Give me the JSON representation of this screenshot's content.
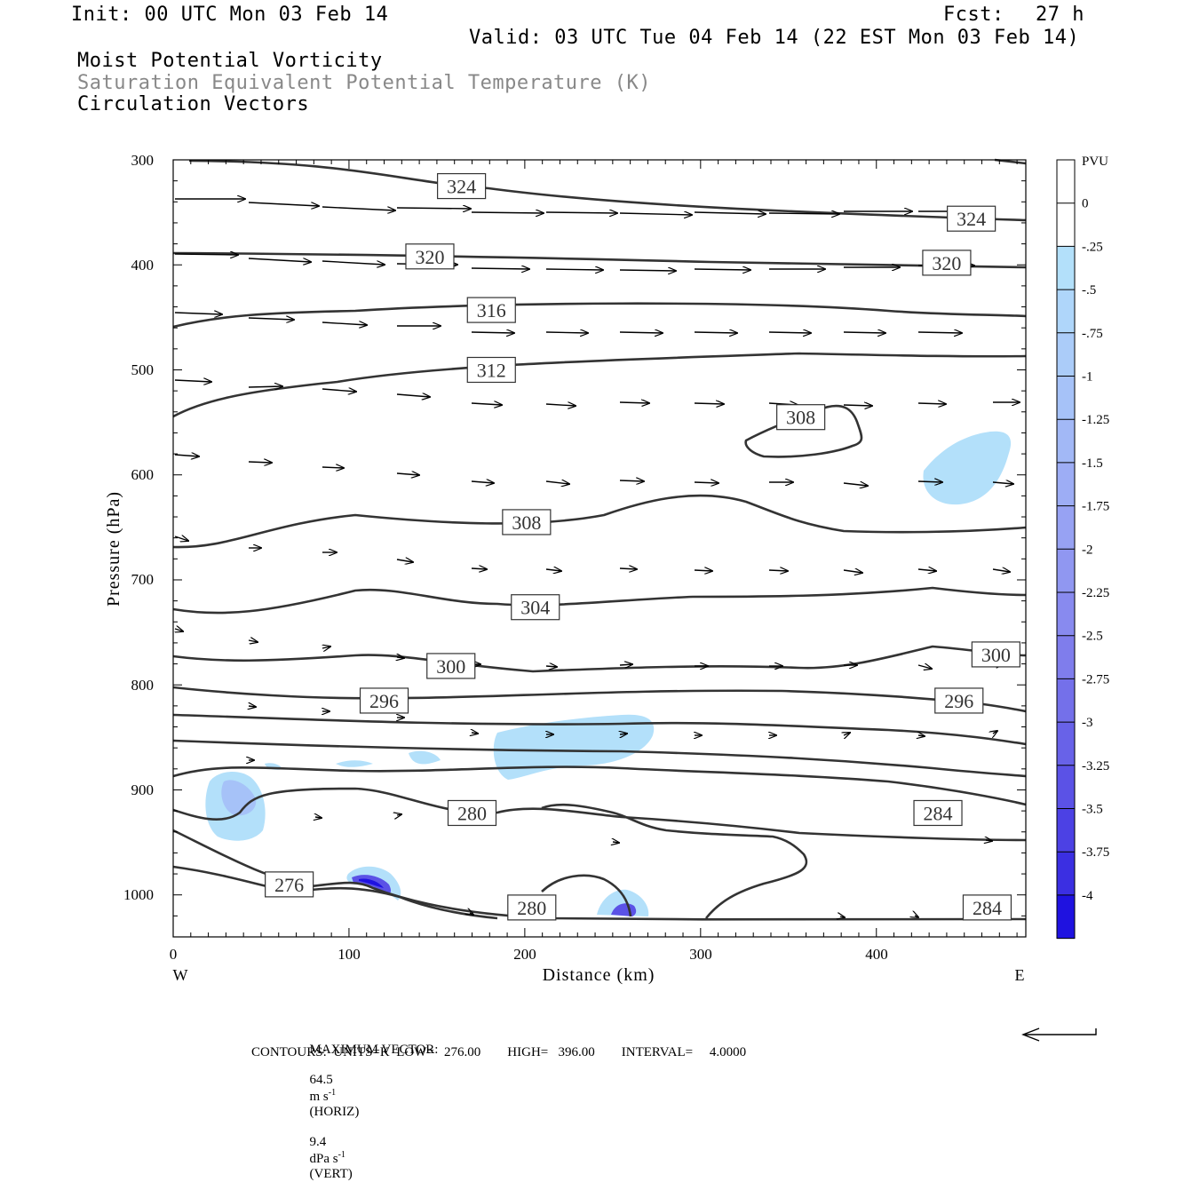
{
  "header": {
    "init": "Init: 00 UTC Mon 03 Feb 14",
    "fcst_label": "Fcst:",
    "fcst_value": "27 h",
    "valid": "Valid: 03 UTC Tue 04 Feb 14 (22 EST Mon 03 Feb 14)",
    "field1": "Moist Potential Vorticity",
    "field2": "Saturation Equivalent Potential Temperature (K)",
    "field3": "Circulation Vectors"
  },
  "footer": {
    "max_vector_label": "MAXIMUM VECTOR:",
    "horiz_value": "64.5",
    "horiz_unit_base": "m s",
    "horiz_unit_exp": "-1",
    "horiz_tag": "(HORIZ)",
    "vert_value": "9.4",
    "vert_unit_base": "dPa s",
    "vert_unit_exp": "-1",
    "vert_tag": "(VERT)",
    "contours_line": "CONTOURS:  UNITS=K  LOW=   276.00        HIGH=   396.00        INTERVAL=     4.0000"
  },
  "colors": {
    "contour": "#333333",
    "vector": "#000000",
    "mpv_light": "#b3e0fa",
    "mpv_mid": "#9fb8f0",
    "mpv_strong": "#2020e0"
  },
  "chart_data": {
    "type": "contour",
    "xlabel": "Distance (km)",
    "ylabel": "Pressure (hPa)",
    "xlim": [
      0,
      485
    ],
    "ylim": [
      1040,
      300
    ],
    "x_ticks": [
      "0",
      "100",
      "200",
      "300",
      "400"
    ],
    "y_ticks": [
      "300",
      "400",
      "500",
      "600",
      "700",
      "800",
      "900",
      "1000"
    ],
    "x_end_labels": {
      "left": "W",
      "right": "E"
    },
    "colorbar": {
      "unit": "PVU",
      "levels": [
        "0",
        "-.25",
        "-.5",
        "-.75",
        "-1",
        "-1.25",
        "-1.5",
        "-1.75",
        "-2",
        "-2.25",
        "-2.5",
        "-2.75",
        "-3",
        "-3.25",
        "-3.5",
        "-3.75",
        "-4"
      ],
      "colors": [
        "#ffffff",
        "#ffffff",
        "#b3e0fa",
        "#afd6fa",
        "#abccf9",
        "#a6c2f8",
        "#a2b8f6",
        "#9dadf5",
        "#97a2f3",
        "#9097f1",
        "#888aef",
        "#7f7dec",
        "#7470ea",
        "#6862e8",
        "#5b52e6",
        "#4c41e4",
        "#3b2fe2",
        "#1f12e0"
      ]
    },
    "contour_labels": [
      {
        "text": "324",
        "x": 164,
        "p": 325
      },
      {
        "text": "324",
        "x": 454,
        "p": 356
      },
      {
        "text": "320",
        "x": 146,
        "p": 392
      },
      {
        "text": "320",
        "x": 440,
        "p": 398
      },
      {
        "text": "316",
        "x": 181,
        "p": 443
      },
      {
        "text": "312",
        "x": 181,
        "p": 500
      },
      {
        "text": "308",
        "x": 357,
        "p": 545
      },
      {
        "text": "308",
        "x": 201,
        "p": 645
      },
      {
        "text": "304",
        "x": 206,
        "p": 726
      },
      {
        "text": "300",
        "x": 158,
        "p": 782
      },
      {
        "text": "300",
        "x": 468,
        "p": 771
      },
      {
        "text": "296",
        "x": 120,
        "p": 815
      },
      {
        "text": "296",
        "x": 447,
        "p": 815
      },
      {
        "text": "284",
        "x": 435,
        "p": 922
      },
      {
        "text": "280",
        "x": 170,
        "p": 922
      },
      {
        "text": "276",
        "x": 66,
        "p": 990
      },
      {
        "text": "280",
        "x": 204,
        "p": 1012
      },
      {
        "text": "284",
        "x": 463,
        "p": 1012
      }
    ]
  }
}
